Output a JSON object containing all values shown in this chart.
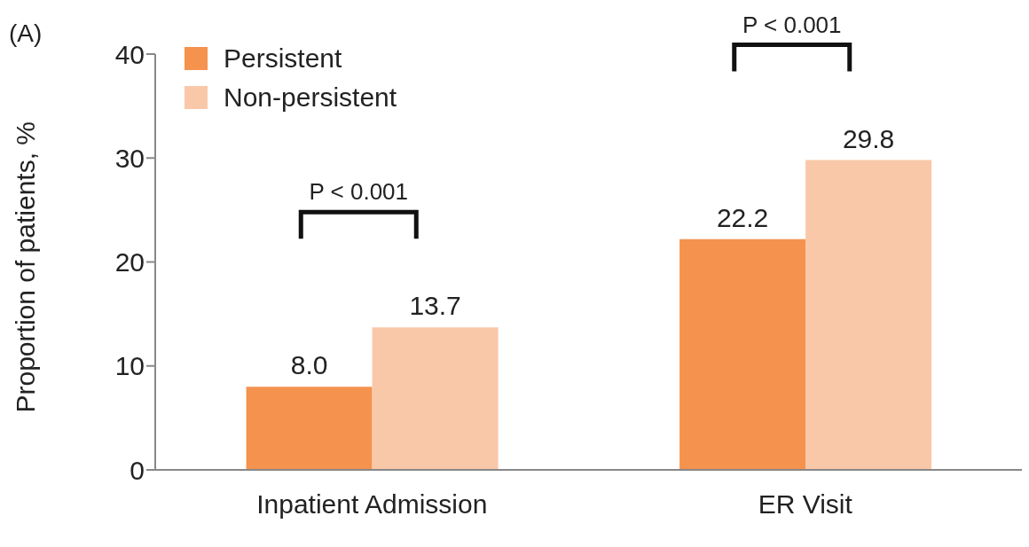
{
  "chart_data": {
    "type": "bar",
    "ylabel": "Proportion of patients, %",
    "categories": [
      "Inpatient Admission",
      "ER Visit"
    ],
    "series": [
      {
        "name": "Persistent",
        "color": "#f4924e",
        "values": [
          8.0,
          22.2
        ],
        "value_labels": [
          "8.0",
          "22.2"
        ]
      },
      {
        "name": "Non-persistent",
        "color": "#f9c8a8",
        "values": [
          13.7,
          29.8
        ],
        "value_labels": [
          "13.7",
          "29.8"
        ]
      }
    ],
    "ylim": [
      0,
      40
    ],
    "yticks": [
      0,
      10,
      20,
      30,
      40
    ],
    "grid": false,
    "legend": "top left",
    "annotations": [
      "(A)",
      "P < 0.001",
      "P < 0.001"
    ]
  }
}
